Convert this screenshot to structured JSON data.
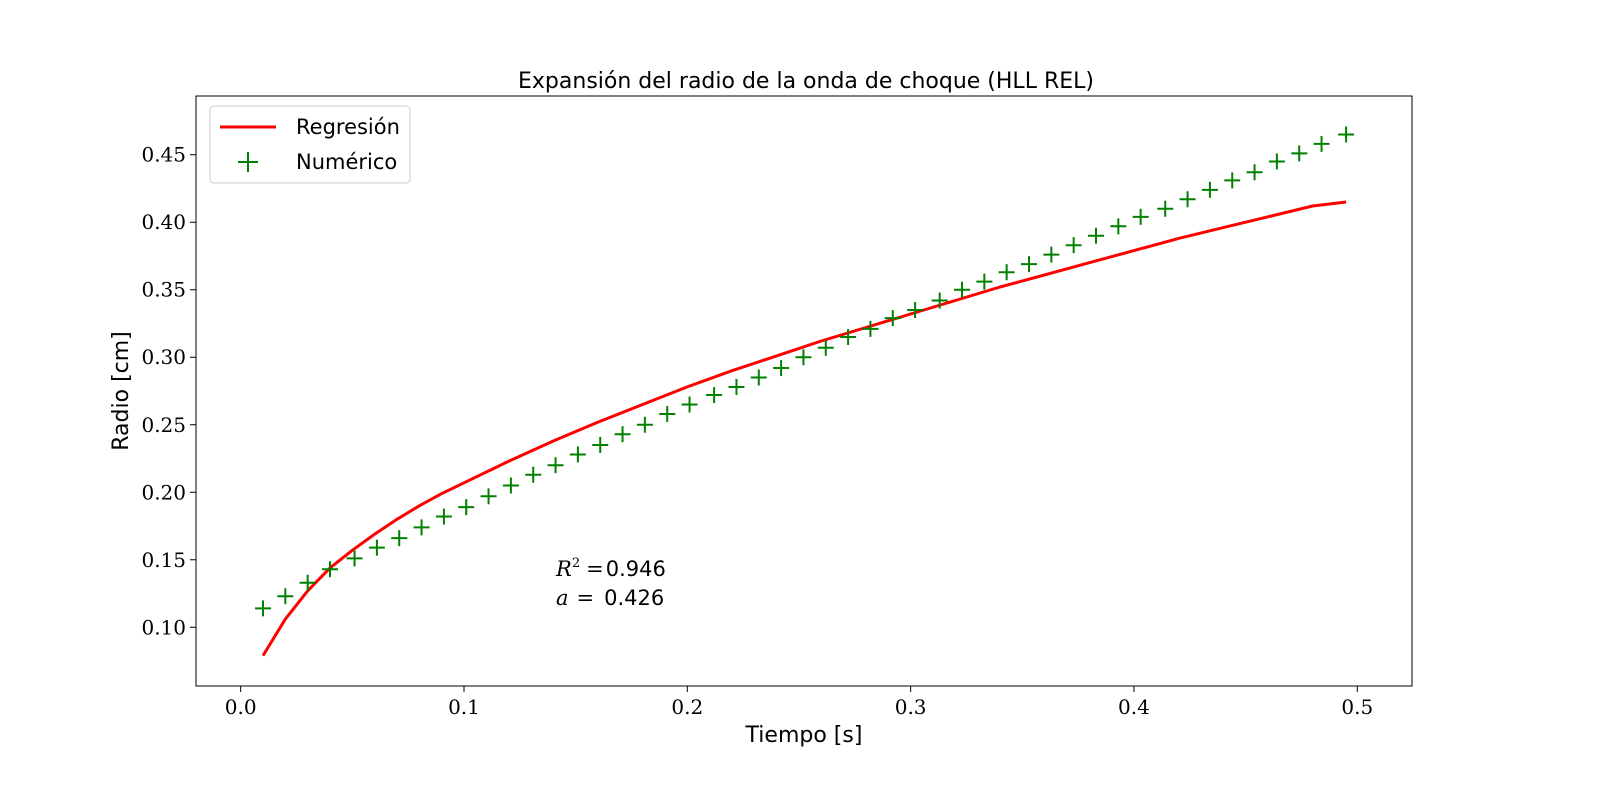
{
  "chart_data": {
    "type": "line",
    "title": "Expansión del radio de la onda de choque (HLL REL)",
    "xlabel": "Tiempo [s]",
    "ylabel": "Radio [cm]",
    "xlim": [
      -0.02,
      0.5245
    ],
    "ylim": [
      0.0565,
      0.4935
    ],
    "xticks": [
      0.0,
      0.1,
      0.2,
      0.3,
      0.4,
      0.5
    ],
    "xtick_labels": [
      "0.0",
      "0.1",
      "0.2",
      "0.3",
      "0.4",
      "0.5"
    ],
    "yticks": [
      0.1,
      0.15,
      0.2,
      0.25,
      0.3,
      0.35,
      0.4,
      0.45
    ],
    "ytick_labels": [
      "0.10",
      "0.15",
      "0.20",
      "0.25",
      "0.30",
      "0.35",
      "0.40",
      "0.45"
    ],
    "grid": false,
    "legend_position": "upper-left",
    "series": [
      {
        "name": "Regresión",
        "kind": "line",
        "color": "#ff0000",
        "x": [
          0.01,
          0.02,
          0.03,
          0.04,
          0.05,
          0.06,
          0.07,
          0.08,
          0.09,
          0.1,
          0.12,
          0.14,
          0.16,
          0.18,
          0.2,
          0.22,
          0.24,
          0.26,
          0.28,
          0.3,
          0.32,
          0.34,
          0.36,
          0.38,
          0.4,
          0.42,
          0.44,
          0.46,
          0.48,
          0.495
        ],
        "y": [
          0.079,
          0.106,
          0.127,
          0.144,
          0.157,
          0.169,
          0.18,
          0.19,
          0.199,
          0.207,
          0.223,
          0.238,
          0.252,
          0.265,
          0.278,
          0.29,
          0.301,
          0.312,
          0.322,
          0.332,
          0.342,
          0.352,
          0.361,
          0.37,
          0.379,
          0.388,
          0.396,
          0.404,
          0.412,
          0.415
        ]
      },
      {
        "name": "Numérico",
        "kind": "scatter",
        "marker": "+",
        "color": "#008000",
        "x": [
          0.01,
          0.02,
          0.03,
          0.04,
          0.051,
          0.061,
          0.071,
          0.081,
          0.091,
          0.101,
          0.111,
          0.121,
          0.131,
          0.141,
          0.151,
          0.161,
          0.171,
          0.181,
          0.191,
          0.201,
          0.212,
          0.222,
          0.232,
          0.242,
          0.252,
          0.262,
          0.272,
          0.282,
          0.292,
          0.302,
          0.313,
          0.323,
          0.333,
          0.343,
          0.353,
          0.363,
          0.373,
          0.383,
          0.393,
          0.403,
          0.414,
          0.424,
          0.434,
          0.444,
          0.454,
          0.464,
          0.474,
          0.484,
          0.495
        ],
        "y": [
          0.114,
          0.123,
          0.133,
          0.143,
          0.151,
          0.159,
          0.166,
          0.174,
          0.182,
          0.189,
          0.197,
          0.205,
          0.213,
          0.22,
          0.228,
          0.235,
          0.243,
          0.25,
          0.258,
          0.265,
          0.272,
          0.278,
          0.285,
          0.292,
          0.3,
          0.307,
          0.315,
          0.321,
          0.329,
          0.335,
          0.342,
          0.35,
          0.356,
          0.363,
          0.369,
          0.376,
          0.383,
          0.39,
          0.397,
          0.404,
          0.41,
          0.417,
          0.424,
          0.431,
          0.437,
          0.445,
          0.451,
          0.458,
          0.465
        ]
      }
    ],
    "annotations": {
      "r2_label": "R",
      "r2_sup": "2",
      "r2_eq": "=",
      "r2_value": "0.946",
      "a_label": "a",
      "a_eq": "=",
      "a_value": "0.426"
    }
  }
}
